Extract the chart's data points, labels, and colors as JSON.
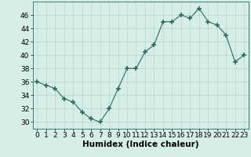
{
  "x": [
    0,
    1,
    2,
    3,
    4,
    5,
    6,
    7,
    8,
    9,
    10,
    11,
    12,
    13,
    14,
    15,
    16,
    17,
    18,
    19,
    20,
    21,
    22,
    23
  ],
  "y": [
    36,
    35.5,
    35,
    33.5,
    33,
    31.5,
    30.5,
    30,
    32,
    35,
    38,
    38,
    40.5,
    41.5,
    45,
    45,
    46,
    45.5,
    47,
    45,
    44.5,
    43,
    39,
    40
  ],
  "xlabel": "Humidex (Indice chaleur)",
  "ylim": [
    29,
    48
  ],
  "xlim": [
    -0.5,
    23.5
  ],
  "yticks": [
    30,
    32,
    34,
    36,
    38,
    40,
    42,
    44,
    46
  ],
  "xticks": [
    0,
    1,
    2,
    3,
    4,
    5,
    6,
    7,
    8,
    9,
    10,
    11,
    12,
    13,
    14,
    15,
    16,
    17,
    18,
    19,
    20,
    21,
    22,
    23
  ],
  "line_color": "#2d6b5e",
  "marker": "+",
  "marker_size": 4,
  "bg_color": "#d6eee8",
  "grid_color": "#b8d4ce",
  "label_fontsize": 7.5,
  "tick_fontsize": 6.5
}
